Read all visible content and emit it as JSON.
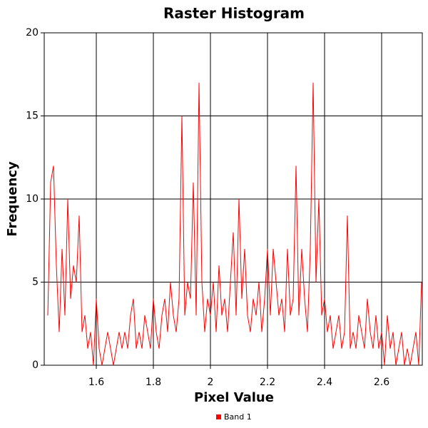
{
  "chart_data": {
    "type": "line",
    "title": "Raster Histogram",
    "x_label": "Pixel Value",
    "y_label": "Frequency",
    "x": [
      1.43,
      1.44,
      1.45,
      1.46,
      1.47,
      1.48,
      1.49,
      1.5,
      1.51,
      1.52,
      1.53,
      1.54,
      1.55,
      1.56,
      1.57,
      1.58,
      1.59,
      1.6,
      1.61,
      1.62,
      1.63,
      1.64,
      1.65,
      1.66,
      1.67,
      1.68,
      1.69,
      1.7,
      1.71,
      1.72,
      1.73,
      1.74,
      1.75,
      1.76,
      1.77,
      1.78,
      1.79,
      1.8,
      1.81,
      1.82,
      1.83,
      1.84,
      1.85,
      1.86,
      1.87,
      1.88,
      1.89,
      1.9,
      1.91,
      1.92,
      1.93,
      1.94,
      1.95,
      1.96,
      1.97,
      1.98,
      1.99,
      2.0,
      2.01,
      2.02,
      2.03,
      2.04,
      2.05,
      2.06,
      2.07,
      2.08,
      2.09,
      2.1,
      2.11,
      2.12,
      2.13,
      2.14,
      2.15,
      2.16,
      2.17,
      2.18,
      2.19,
      2.2,
      2.21,
      2.22,
      2.23,
      2.24,
      2.25,
      2.26,
      2.27,
      2.28,
      2.29,
      2.3,
      2.31,
      2.32,
      2.33,
      2.34,
      2.35,
      2.36,
      2.37,
      2.38,
      2.39,
      2.4,
      2.41,
      2.42,
      2.43,
      2.44,
      2.45,
      2.46,
      2.47,
      2.48,
      2.49,
      2.5,
      2.51,
      2.52,
      2.53,
      2.54,
      2.55,
      2.56,
      2.57,
      2.58,
      2.59,
      2.6,
      2.61,
      2.62,
      2.63,
      2.64,
      2.65,
      2.66,
      2.67,
      2.68,
      2.69,
      2.7,
      2.71,
      2.72,
      2.73,
      2.74
    ],
    "series": [
      {
        "name": "Band 1",
        "color": "#ff0000",
        "values": [
          3,
          11,
          12,
          6,
          2,
          7,
          3,
          10,
          4,
          6,
          5,
          9,
          2,
          3,
          1,
          2,
          0,
          4,
          1,
          0,
          1,
          2,
          1,
          0,
          1,
          2,
          1,
          2,
          1,
          3,
          4,
          1,
          2,
          1,
          3,
          2,
          1,
          4,
          2,
          1,
          3,
          4,
          2,
          5,
          3,
          2,
          4,
          15,
          3,
          5,
          4,
          11,
          3,
          17,
          5,
          2,
          4,
          3,
          5,
          2,
          6,
          3,
          4,
          2,
          5,
          8,
          3,
          10,
          4,
          7,
          3,
          2,
          4,
          3,
          5,
          2,
          4,
          7,
          3,
          7,
          5,
          3,
          4,
          2,
          7,
          3,
          4,
          12,
          3,
          7,
          4,
          2,
          7,
          17,
          5,
          10,
          3,
          4,
          2,
          3,
          1,
          2,
          3,
          1,
          2,
          9,
          1,
          2,
          1,
          3,
          2,
          1,
          4,
          2,
          1,
          3,
          1,
          2,
          0,
          3,
          1,
          2,
          0,
          1,
          2,
          0,
          1,
          0,
          1,
          2,
          0,
          5
        ]
      }
    ],
    "xlim": [
      1.4175,
      2.7425
    ],
    "xticks": [
      1.6,
      1.8,
      2,
      2.2,
      2.4,
      2.6
    ],
    "ylim": [
      0,
      20
    ],
    "yticks": [
      0,
      5,
      10,
      15,
      20
    ],
    "grid": true,
    "legend": "bottom"
  }
}
